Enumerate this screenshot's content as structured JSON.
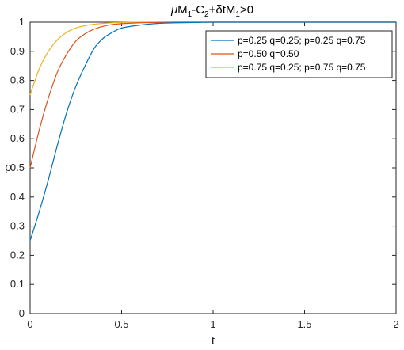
{
  "chart_data": {
    "type": "line",
    "title": "μM1-C2+δtM1>0",
    "title_parts": {
      "mu": "μ",
      "m1a": "M",
      "sub1a": "1",
      "dash_c": "-C",
      "sub2": "2",
      "plus_delta": "+δtM",
      "sub1b": "1",
      "gt0": ">0"
    },
    "xlabel": "t",
    "ylabel": "p",
    "xlim": [
      0,
      2
    ],
    "ylim": [
      0,
      1
    ],
    "xticks": [
      0,
      0.5,
      1,
      1.5,
      2
    ],
    "xtick_labels": [
      "0",
      "0.5",
      "1",
      "1.5",
      "2"
    ],
    "yticks": [
      0,
      0.1,
      0.2,
      0.3,
      0.4,
      0.5,
      0.6,
      0.7,
      0.8,
      0.9,
      1
    ],
    "ytick_labels": [
      "0",
      "0.1",
      "0.2",
      "0.3",
      "0.4",
      "0.5",
      "0.6",
      "0.7",
      "0.8",
      "0.9",
      "1"
    ],
    "grid": false,
    "legend_position": "top-right",
    "x": [
      0,
      0.05,
      0.1,
      0.15,
      0.2,
      0.25,
      0.3,
      0.35,
      0.4,
      0.45,
      0.5,
      0.6,
      0.7,
      0.8,
      0.9,
      1.0,
      1.2,
      1.4,
      1.6,
      1.8,
      2.0
    ],
    "series": [
      {
        "name": "p=0.25 q=0.25; p=0.25 q=0.75",
        "color": "#0072bd",
        "values": [
          0.25,
          0.35,
          0.46,
          0.58,
          0.69,
          0.78,
          0.85,
          0.91,
          0.945,
          0.965,
          0.98,
          0.99,
          0.996,
          0.998,
          0.999,
          1,
          1,
          1,
          1,
          1,
          1
        ]
      },
      {
        "name": "p=0.50 q=0.50",
        "color": "#d95319",
        "values": [
          0.5,
          0.63,
          0.74,
          0.83,
          0.89,
          0.935,
          0.96,
          0.976,
          0.986,
          0.992,
          0.995,
          0.998,
          0.999,
          1,
          1,
          1,
          1,
          1,
          1,
          1,
          1
        ]
      },
      {
        "name": "p=0.75 q=0.25; p=0.75 q=0.75",
        "color": "#edb120",
        "values": [
          0.75,
          0.84,
          0.9,
          0.94,
          0.965,
          0.98,
          0.988,
          0.993,
          0.996,
          0.998,
          0.999,
          1,
          1,
          1,
          1,
          1,
          1,
          1,
          1,
          1,
          1
        ]
      }
    ]
  }
}
